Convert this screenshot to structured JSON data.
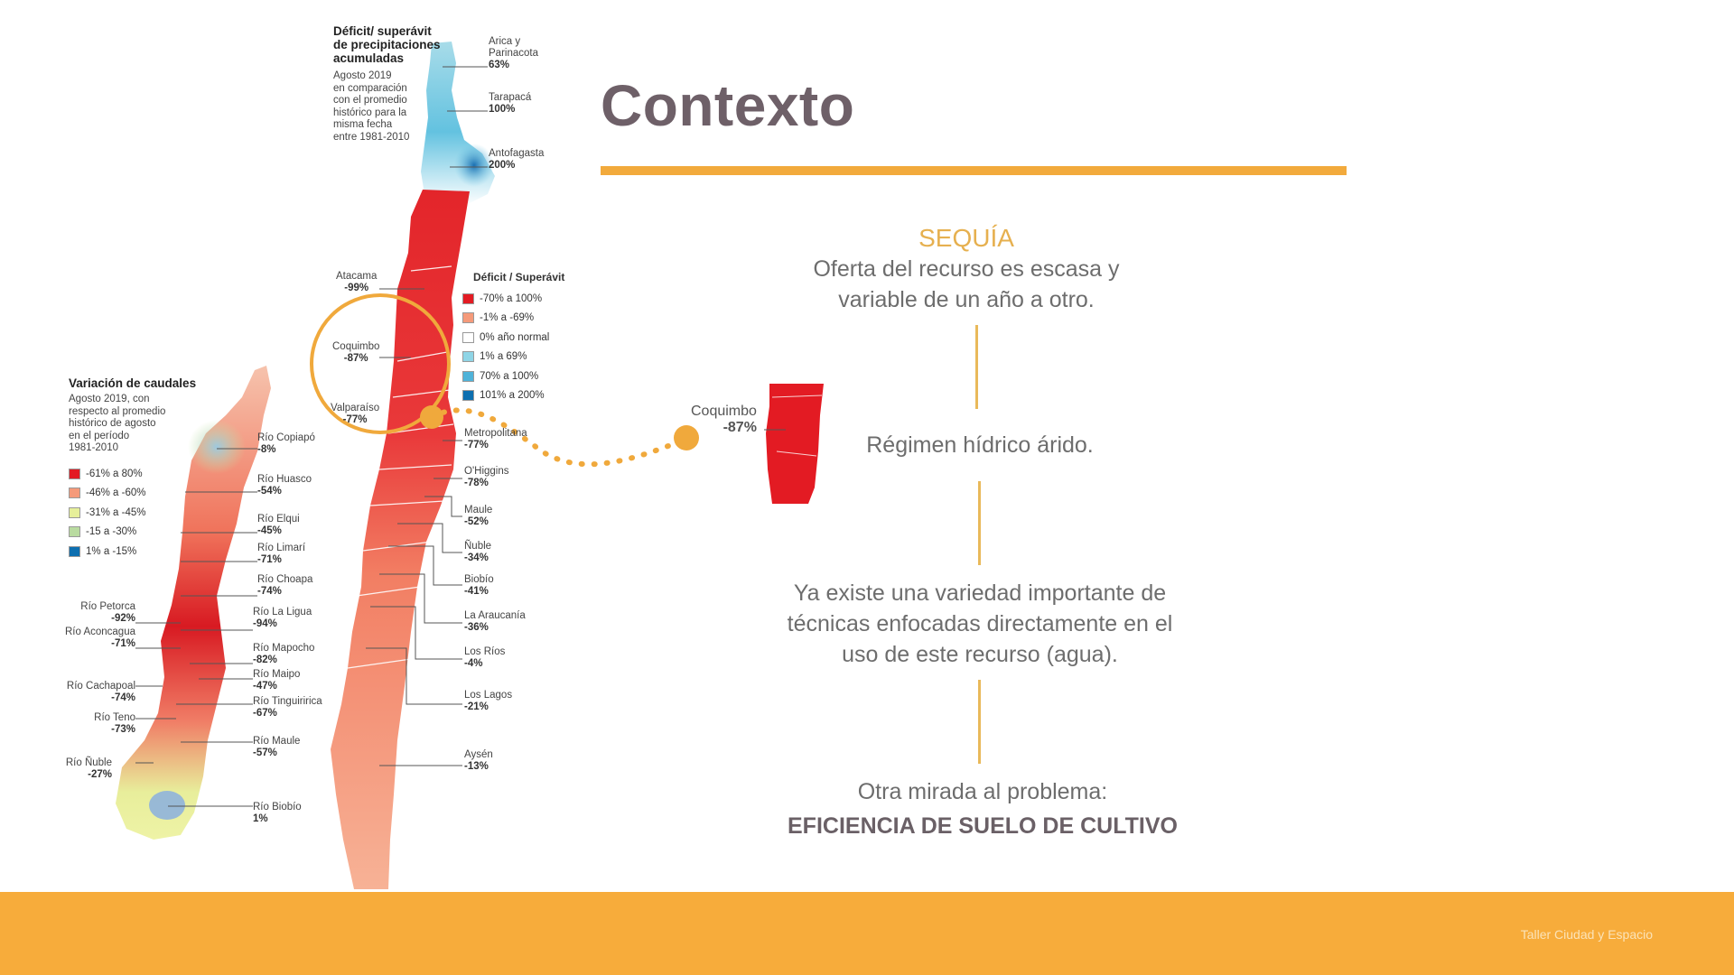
{
  "slide": {
    "title": "Contexto",
    "sequia": "SEQUÍA",
    "block1": [
      "Oferta del recurso es escasa y",
      "variable de un año a otro."
    ],
    "block2": "Régimen hídrico árido.",
    "block3": [
      "Ya existe una variedad importante de",
      "técnicas enfocadas directamente en el",
      "uso de este recurso (agua)."
    ],
    "block4_line1": "Otra mirada al problema:",
    "block4_line2": "EFICIENCIA DE SUELO DE CULTIVO",
    "footer": "Taller Ciudad y Espacio"
  },
  "precip_map": {
    "title": [
      "Déficit/ superávit",
      "de precipitaciones",
      "acumuladas"
    ],
    "subtitle": [
      "Agosto 2019",
      "en comparación",
      "con el promedio",
      "histórico para la",
      "misma fecha",
      "entre 1981-2010"
    ],
    "north_regions": [
      {
        "name": [
          "Arica y",
          "Parinacota"
        ],
        "value": "63%"
      },
      {
        "name": [
          "Tarapacá"
        ],
        "value": "100%"
      },
      {
        "name": [
          "Antofagasta"
        ],
        "value": "200%"
      }
    ],
    "left_regions": [
      {
        "name": "Atacama",
        "value": "-99%"
      },
      {
        "name": "Coquimbo",
        "value": "-87%"
      },
      {
        "name": "Valparaíso",
        "value": "-77%"
      }
    ],
    "right_regions": [
      {
        "name": "Metropolitana",
        "value": "-77%"
      },
      {
        "name": "O'Higgins",
        "value": "-78%"
      },
      {
        "name": "Maule",
        "value": "-52%"
      },
      {
        "name": "Ñuble",
        "value": "-34%"
      },
      {
        "name": "Biobío",
        "value": "-41%"
      },
      {
        "name": "La Araucanía",
        "value": "-36%"
      },
      {
        "name": "Los Ríos",
        "value": "-4%"
      },
      {
        "name": "Los Lagos",
        "value": "-21%"
      },
      {
        "name": "Aysén",
        "value": "-13%"
      }
    ],
    "legend_title": "Déficit / Superávit",
    "legend": [
      {
        "label": "-70% a 100%",
        "color": "#e31b23"
      },
      {
        "label": "-1% a -69%",
        "color": "#f59a7a"
      },
      {
        "label": "0% año normal",
        "color": "#ffffff"
      },
      {
        "label": "1% a 69%",
        "color": "#8fd5e6"
      },
      {
        "label": "70% a 100%",
        "color": "#4fb3d9"
      },
      {
        "label": "101% a 200%",
        "color": "#0d6fb0"
      }
    ]
  },
  "flow_map": {
    "title": "Variación de caudales",
    "subtitle": [
      "Agosto 2019, con",
      "respecto al promedio",
      "histórico de agosto",
      "en el período",
      "1981-2010"
    ],
    "legend": [
      {
        "label": "-61% a 80%",
        "color": "#e31b23"
      },
      {
        "label": "-46% a -60%",
        "color": "#f59a7a"
      },
      {
        "label": "-31% a -45%",
        "color": "#e6ef9a"
      },
      {
        "label": "-15 a -30%",
        "color": "#b9dba0"
      },
      {
        "label": "1% a -15%",
        "color": "#0d6fb0"
      }
    ],
    "right_rivers": [
      {
        "name": "Río Copiapó",
        "value": "-8%"
      },
      {
        "name": "Río Huasco",
        "value": "-54%"
      },
      {
        "name": "Río Elqui",
        "value": "-45%"
      },
      {
        "name": "Río Limarí",
        "value": "-71%"
      },
      {
        "name": "Río Choapa",
        "value": "-74%"
      },
      {
        "name": "Río La Ligua",
        "value": "-94%"
      },
      {
        "name": "Río Mapocho",
        "value": "-82%"
      },
      {
        "name": "Río Maipo",
        "value": "-47%"
      },
      {
        "name": "Río Tinguiririca",
        "value": "-67%"
      },
      {
        "name": "Río Maule",
        "value": "-57%"
      },
      {
        "name": "Río Biobío",
        "value": "1%"
      }
    ],
    "left_rivers": [
      {
        "name": "Río Petorca",
        "value": "-92%"
      },
      {
        "name": "Río Aconcagua",
        "value": "-71%"
      },
      {
        "name": "Río Cachapoal",
        "value": "-74%"
      },
      {
        "name": "Río Teno",
        "value": "-73%"
      },
      {
        "name": "Río Ñuble",
        "value": "-27%"
      }
    ]
  },
  "zoom": {
    "name": "Coquimbo",
    "value": "-87%"
  },
  "colors": {
    "accent": "#f2aa3c",
    "footer": "#f7ac3b",
    "title": "#6e6068",
    "deficit_red": "#e31b23",
    "deficit_light": "#f59a7a"
  }
}
